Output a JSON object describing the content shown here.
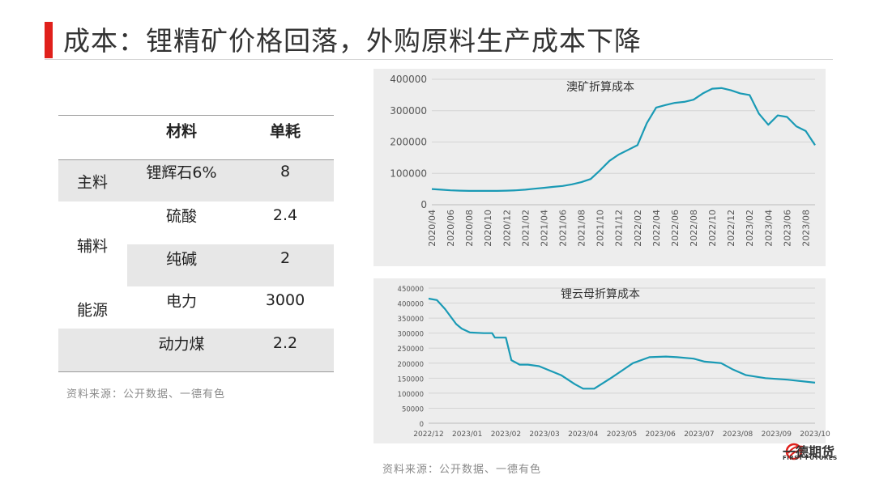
{
  "page": {
    "title": "成本：锂精矿价格回落，外购原料生产成本下降",
    "source_left": "资料来源：公开数据、一德有色",
    "source_right": "资料来源：公开数据、一德有色"
  },
  "table": {
    "headers": [
      "材料",
      "单耗"
    ],
    "groups": [
      "主料",
      "辅料",
      "能源"
    ],
    "rows": [
      {
        "material": "锂辉石6%",
        "usage": "8"
      },
      {
        "material": "硫酸",
        "usage": "2.4"
      },
      {
        "material": "纯碱",
        "usage": "2"
      },
      {
        "material": "电力",
        "usage": "3000"
      },
      {
        "material": "动力煤",
        "usage": "2.2"
      }
    ]
  },
  "logo": {
    "name": "一德期货",
    "sub": "FIRST FUTURES"
  },
  "colors": {
    "accent": "#e0201b",
    "series": "#1a9ab5",
    "panel": "#ededed"
  },
  "chart_data": [
    {
      "type": "line",
      "title": "澳矿折算成本",
      "ylim": [
        0,
        400000
      ],
      "yticks": [
        "0",
        "100000",
        "200000",
        "300000",
        "400000"
      ],
      "xticks": [
        "2020/04",
        "2020/06",
        "2020/08",
        "2020/10",
        "2020/12",
        "2021/02",
        "2021/04",
        "2021/06",
        "2021/08",
        "2021/10",
        "2021/12",
        "2022/02",
        "2022/04",
        "2022/06",
        "2022/08",
        "2022/10",
        "2022/12",
        "2023/02",
        "2023/04",
        "2023/06",
        "2023/08"
      ],
      "xrange": [
        "2020/04",
        "2023/09"
      ],
      "grid": true,
      "series": [
        {
          "x": [
            "2020/04",
            "2020/05",
            "2020/06",
            "2020/07",
            "2020/08",
            "2020/09",
            "2020/10",
            "2020/11",
            "2020/12",
            "2021/01",
            "2021/02",
            "2021/03",
            "2021/04",
            "2021/05",
            "2021/06",
            "2021/07",
            "2021/08",
            "2021/09",
            "2021/10",
            "2021/11",
            "2021/12",
            "2022/01",
            "2022/02",
            "2022/03",
            "2022/04",
            "2022/05",
            "2022/06",
            "2022/07",
            "2022/08",
            "2022/09",
            "2022/10",
            "2022/11",
            "2022/12",
            "2023/01",
            "2023/02",
            "2023/03",
            "2023/04",
            "2023/05",
            "2023/06",
            "2023/07",
            "2023/08",
            "2023/09"
          ],
          "y": [
            50000,
            48000,
            46000,
            45000,
            44000,
            44000,
            44000,
            44000,
            45000,
            46000,
            48000,
            51000,
            54000,
            57000,
            60000,
            65000,
            72000,
            82000,
            110000,
            140000,
            160000,
            175000,
            190000,
            260000,
            310000,
            318000,
            325000,
            328000,
            335000,
            355000,
            370000,
            372000,
            365000,
            355000,
            350000,
            290000,
            255000,
            285000,
            280000,
            250000,
            235000,
            190000
          ]
        }
      ]
    },
    {
      "type": "line",
      "title": "锂云母折算成本",
      "ylim": [
        0,
        450000
      ],
      "yticks": [
        "0",
        "50000",
        "100000",
        "150000",
        "200000",
        "250000",
        "300000",
        "350000",
        "400000",
        "450000"
      ],
      "xticks": [
        "2022/12",
        "2023/01",
        "2023/02",
        "2023/03",
        "2023/04",
        "2023/05",
        "2023/06",
        "2023/07",
        "2023/08",
        "2023/09",
        "2023/10"
      ],
      "xrange": [
        "2022/12",
        "2023/10"
      ],
      "grid": true,
      "series": [
        {
          "x": [
            "2022/12",
            "2022/12",
            "2023/01",
            "2023/01",
            "2023/01",
            "2023/01",
            "2023/02",
            "2023/02",
            "2023/02",
            "2023/02",
            "2023/02",
            "2023/03",
            "2023/03",
            "2023/03",
            "2023/04",
            "2023/04",
            "2023/04",
            "2023/05",
            "2023/05",
            "2023/05",
            "2023/06",
            "2023/06",
            "2023/06",
            "2023/07",
            "2023/07",
            "2023/07",
            "2023/08",
            "2023/08",
            "2023/08",
            "2023/09",
            "2023/09",
            "2023/10"
          ],
          "y": [
            415000,
            410000,
            380000,
            330000,
            315000,
            302000,
            300000,
            300000,
            285000,
            285000,
            210000,
            195000,
            195000,
            190000,
            160000,
            130000,
            115000,
            115000,
            150000,
            175000,
            200000,
            220000,
            222000,
            220000,
            215000,
            205000,
            200000,
            180000,
            160000,
            150000,
            145000,
            135000
          ],
          "t": [
            0,
            0.3,
            0.6,
            1.0,
            1.2,
            1.5,
            2.0,
            2.3,
            2.4,
            2.8,
            3.0,
            3.3,
            3.6,
            4.0,
            4.8,
            5.3,
            5.6,
            6.0,
            6.6,
            7.0,
            7.4,
            8.0,
            8.6,
            9.0,
            9.6,
            10.0,
            10.6,
            11.0,
            11.5,
            12.2,
            13.0,
            14.0
          ]
        }
      ]
    }
  ]
}
